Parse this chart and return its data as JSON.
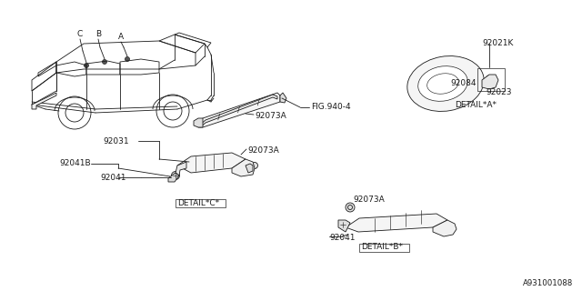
{
  "bg_color": "#ffffff",
  "fig_code": "A931001088",
  "lc": "#1a1a1a",
  "lw": 0.6,
  "fs": 6.5,
  "labels": {
    "fig940_4": "FIG.940-4",
    "detail_a": "DETAIL*A*",
    "detail_b": "DETAIL*B*",
    "detail_c": "DETAIL*C*",
    "92021K": "92021K",
    "92084": "92084",
    "92023": "92023",
    "92031": "92031",
    "92073A": "92073A",
    "92041B": "92041B",
    "92041": "92041",
    "A": "A",
    "B": "B",
    "C": "C"
  }
}
